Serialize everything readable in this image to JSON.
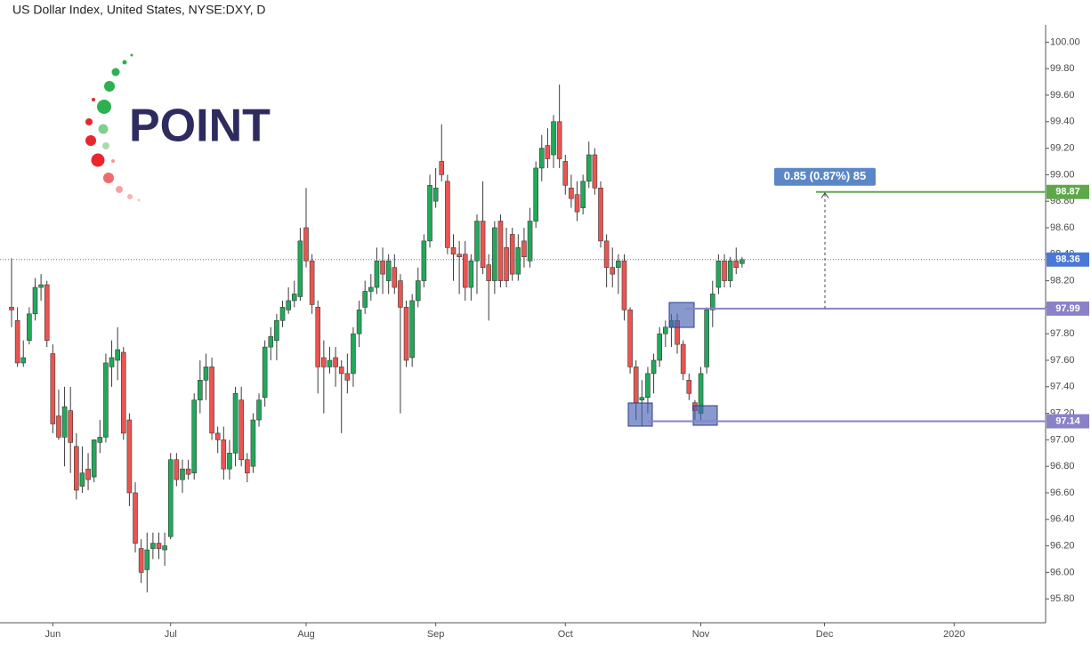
{
  "chart_data": {
    "type": "candlestick",
    "title": "US Dollar Index, United States, NYSE:DXY, D",
    "logo": "POINT",
    "up_color": "#22a85a",
    "down_color": "#ea5550",
    "wick_color": "#3b3b3b",
    "last_price_color": "#4a78d8",
    "categories": [
      null,
      null,
      null,
      null,
      null,
      null,
      null,
      "Jun",
      null,
      null,
      null,
      null,
      null,
      null,
      null,
      null,
      null,
      null,
      null,
      null,
      null,
      null,
      null,
      null,
      null,
      null,
      null,
      "Jul",
      null,
      null,
      null,
      null,
      null,
      null,
      null,
      null,
      null,
      null,
      null,
      null,
      null,
      null,
      null,
      null,
      null,
      null,
      null,
      null,
      null,
      null,
      "Aug",
      null,
      null,
      null,
      null,
      null,
      null,
      null,
      null,
      null,
      null,
      null,
      null,
      null,
      null,
      null,
      null,
      null,
      null,
      null,
      null,
      null,
      "Sep",
      null,
      null,
      null,
      null,
      null,
      null,
      null,
      null,
      null,
      null,
      null,
      null,
      null,
      null,
      null,
      null,
      null,
      null,
      null,
      null,
      null,
      "Oct",
      null,
      null,
      null,
      null,
      null,
      null,
      null,
      null,
      null,
      null,
      null,
      null,
      null,
      null,
      null,
      null,
      null,
      null,
      null,
      null,
      null,
      null,
      "Nov",
      null,
      null,
      null,
      null,
      null,
      null,
      null,
      null,
      null,
      null,
      null,
      null,
      null,
      null,
      null,
      null,
      null,
      null,
      null,
      null,
      "Dec",
      null,
      null,
      null,
      null,
      null,
      null,
      null,
      null,
      null,
      null,
      null,
      null,
      null,
      null,
      null,
      null,
      null,
      null,
      null,
      null,
      null,
      "2020"
    ],
    "open": [
      98.0,
      97.9,
      97.58,
      97.75,
      97.95,
      98.15,
      98.17,
      97.65,
      97.18,
      97.02,
      97.22,
      96.95,
      96.65,
      96.78,
      96.72,
      96.98,
      97.02,
      97.55,
      97.6,
      97.66,
      97.15,
      96.6,
      96.18,
      96.02,
      96.18,
      96.22,
      96.17,
      96.27,
      96.85,
      96.7,
      96.78,
      96.75,
      97.3,
      97.45,
      97.55,
      97.05,
      97.0,
      96.78,
      96.9,
      97.3,
      96.85,
      96.8,
      97.15,
      97.32,
      97.7,
      97.75,
      97.9,
      97.98,
      98.05,
      98.08,
      98.6,
      98.35,
      98.0,
      97.62,
      97.55,
      97.62,
      97.55,
      97.5,
      97.5,
      97.8,
      98.0,
      98.12,
      98.15,
      98.35,
      98.2,
      98.3,
      98.2,
      98.0,
      97.62,
      98.05,
      98.2,
      98.5,
      98.8,
      99.1,
      98.95,
      98.45,
      98.4,
      98.4,
      98.15,
      98.35,
      98.65,
      98.32,
      98.2,
      98.65,
      98.45,
      98.55,
      98.25,
      98.5,
      98.35,
      98.65,
      99.05,
      99.22,
      99.15,
      99.4,
      99.1,
      98.9,
      98.85,
      98.75,
      98.95,
      99.15,
      98.9,
      98.5,
      98.3,
      98.3,
      98.35,
      97.98,
      97.55,
      97.3,
      97.32,
      97.5,
      97.6,
      97.8,
      97.85,
      97.9,
      97.72,
      97.45,
      97.28,
      97.2,
      97.55,
      97.98,
      98.15,
      98.35,
      98.2,
      98.35,
      98.33,
      null,
      null,
      null,
      null,
      null,
      null,
      null,
      null,
      null,
      null,
      null,
      null,
      null,
      null,
      null,
      null,
      null,
      null,
      null,
      null,
      null,
      null,
      null,
      null,
      null,
      null,
      null,
      null,
      null,
      null,
      null,
      null,
      null,
      null,
      null,
      null
    ],
    "high": [
      98.37,
      98.0,
      97.75,
      98.0,
      98.22,
      98.25,
      98.2,
      97.72,
      97.38,
      97.4,
      97.4,
      97.05,
      96.95,
      96.9,
      97.0,
      97.15,
      97.65,
      97.75,
      97.85,
      97.7,
      97.2,
      96.68,
      96.25,
      96.3,
      96.3,
      96.3,
      96.3,
      96.9,
      96.9,
      96.85,
      96.85,
      97.35,
      97.6,
      97.65,
      97.62,
      97.1,
      97.1,
      97.0,
      97.4,
      97.4,
      96.9,
      97.2,
      97.35,
      97.75,
      97.85,
      97.95,
      98.05,
      98.15,
      98.2,
      98.6,
      98.9,
      98.4,
      98.05,
      97.75,
      97.7,
      97.7,
      97.6,
      97.65,
      97.85,
      98.05,
      98.2,
      98.25,
      98.45,
      98.45,
      98.4,
      98.4,
      98.25,
      98.05,
      98.1,
      98.3,
      98.55,
      99.0,
      99.05,
      99.38,
      99.0,
      98.55,
      98.5,
      98.5,
      98.4,
      98.7,
      98.95,
      98.4,
      98.65,
      98.7,
      98.6,
      98.6,
      98.55,
      98.6,
      98.75,
      99.1,
      99.3,
      99.35,
      99.45,
      99.68,
      99.15,
      99.0,
      98.95,
      99.0,
      99.25,
      99.2,
      98.95,
      98.55,
      98.45,
      98.4,
      98.4,
      98.0,
      97.6,
      97.45,
      97.55,
      97.65,
      97.85,
      97.9,
      97.95,
      97.95,
      97.75,
      97.5,
      97.3,
      97.55,
      98.0,
      98.2,
      98.4,
      98.4,
      98.38,
      98.45,
      98.38,
      null,
      null,
      null,
      null,
      null,
      null,
      null,
      null,
      null,
      null,
      null,
      null,
      null,
      null,
      null,
      null,
      null,
      null,
      null,
      null,
      null,
      null,
      null,
      null,
      null,
      null,
      null,
      null,
      null,
      null,
      null,
      null,
      null,
      null,
      null,
      null
    ],
    "low": [
      97.85,
      97.55,
      97.55,
      97.72,
      97.9,
      98.05,
      97.7,
      97.05,
      97.0,
      96.8,
      96.75,
      96.55,
      96.6,
      96.62,
      96.68,
      96.9,
      96.98,
      97.4,
      97.45,
      97.0,
      96.5,
      96.15,
      95.92,
      95.85,
      96.1,
      96.1,
      96.05,
      96.25,
      96.65,
      96.6,
      96.7,
      96.7,
      97.2,
      97.3,
      97.0,
      96.9,
      96.7,
      96.7,
      96.8,
      96.8,
      96.68,
      96.75,
      97.1,
      97.25,
      97.6,
      97.6,
      97.85,
      97.95,
      98.0,
      98.05,
      98.3,
      97.95,
      97.35,
      97.2,
      97.5,
      97.4,
      97.05,
      97.35,
      97.4,
      97.7,
      97.95,
      98.05,
      98.1,
      98.1,
      98.1,
      98.1,
      97.2,
      97.55,
      97.55,
      98.0,
      98.15,
      98.45,
      98.75,
      98.95,
      98.4,
      98.2,
      98.1,
      98.05,
      98.05,
      98.1,
      98.25,
      97.9,
      98.1,
      98.15,
      98.15,
      98.2,
      98.2,
      98.3,
      98.3,
      98.6,
      98.95,
      99.05,
      99.05,
      99.05,
      98.85,
      98.75,
      98.65,
      98.7,
      98.9,
      98.85,
      98.45,
      98.15,
      98.15,
      98.1,
      97.9,
      97.5,
      97.15,
      97.1,
      97.2,
      97.35,
      97.55,
      97.7,
      97.7,
      97.65,
      97.45,
      97.3,
      97.15,
      97.15,
      97.5,
      97.85,
      98.1,
      98.15,
      98.15,
      98.25,
      98.3,
      null,
      null,
      null,
      null,
      null,
      null,
      null,
      null,
      null,
      null,
      null,
      null,
      null,
      null,
      null,
      null,
      null,
      null,
      null,
      null,
      null,
      null,
      null,
      null,
      null,
      null,
      null,
      null,
      null,
      null,
      null,
      null,
      null,
      null,
      null,
      null
    ],
    "close": [
      97.98,
      97.58,
      97.62,
      97.95,
      98.15,
      98.17,
      97.75,
      97.12,
      97.02,
      97.25,
      96.98,
      96.62,
      96.75,
      96.7,
      97.0,
      97.02,
      97.58,
      97.62,
      97.68,
      97.05,
      96.6,
      96.22,
      96.0,
      96.17,
      96.22,
      96.18,
      96.2,
      96.85,
      96.7,
      96.78,
      96.74,
      97.3,
      97.45,
      97.55,
      97.05,
      97.0,
      96.78,
      96.9,
      97.35,
      96.85,
      96.75,
      97.15,
      97.3,
      97.7,
      97.78,
      97.9,
      98.0,
      98.05,
      98.1,
      98.5,
      98.35,
      98.02,
      97.55,
      97.55,
      97.6,
      97.55,
      97.5,
      97.45,
      97.8,
      97.98,
      98.12,
      98.15,
      98.35,
      98.25,
      98.35,
      98.15,
      98.0,
      97.6,
      98.05,
      98.2,
      98.5,
      98.92,
      98.9,
      99.0,
      98.45,
      98.4,
      98.38,
      98.15,
      98.35,
      98.65,
      98.3,
      98.2,
      98.6,
      98.2,
      98.2,
      98.25,
      98.45,
      98.38,
      98.65,
      99.05,
      99.2,
      99.12,
      99.4,
      99.12,
      98.92,
      98.82,
      98.72,
      98.95,
      99.15,
      98.9,
      98.5,
      98.3,
      98.25,
      98.35,
      97.98,
      97.55,
      97.28,
      97.32,
      97.5,
      97.6,
      97.8,
      97.85,
      97.9,
      97.72,
      97.5,
      97.35,
      97.22,
      97.5,
      97.98,
      98.1,
      98.35,
      98.2,
      98.35,
      98.3,
      98.36,
      null,
      null,
      null,
      null,
      null,
      null,
      null,
      null,
      null,
      null,
      null,
      null,
      null,
      null,
      null,
      null,
      null,
      null,
      null,
      null,
      null,
      null,
      null,
      null,
      null,
      null,
      null,
      null,
      null,
      null,
      null,
      null,
      null,
      null,
      null,
      null
    ],
    "ylim": [
      95.62,
      100.13
    ],
    "yticks": [
      {
        "value": 95.8,
        "label": "95.80"
      },
      {
        "value": 96.0,
        "label": "96.00"
      },
      {
        "value": 96.2,
        "label": "96.20"
      },
      {
        "value": 96.4,
        "label": "96.40"
      },
      {
        "value": 96.6,
        "label": "96.60"
      },
      {
        "value": 96.8,
        "label": "96.80"
      },
      {
        "value": 97.0,
        "label": "97.00"
      },
      {
        "value": 97.2,
        "label": "97.20"
      },
      {
        "value": 97.4,
        "label": "97.40"
      },
      {
        "value": 97.6,
        "label": "97.60"
      },
      {
        "value": 97.8,
        "label": "97.80"
      },
      {
        "value": 98.0,
        "label": "98.00"
      },
      {
        "value": 98.2,
        "label": "98.20"
      },
      {
        "value": 98.4,
        "label": "98.40"
      },
      {
        "value": 98.6,
        "label": "98.60"
      },
      {
        "value": 98.8,
        "label": "98.80"
      },
      {
        "value": 99.0,
        "label": "99.00"
      },
      {
        "value": 99.2,
        "label": "99.20"
      },
      {
        "value": 99.4,
        "label": "99.40"
      },
      {
        "value": 99.6,
        "label": "99.60"
      },
      {
        "value": 99.8,
        "label": "99.80"
      },
      {
        "value": 100.0,
        "label": "100.00"
      }
    ],
    "levels": [
      {
        "value": 98.87,
        "color": "#5fa84a"
      },
      {
        "value": 97.99,
        "color": "#8a82c8"
      },
      {
        "value": 97.14,
        "color": "#8a82c8"
      }
    ],
    "measure": {
      "label": "0.85 (0.87%) 85"
    }
  }
}
